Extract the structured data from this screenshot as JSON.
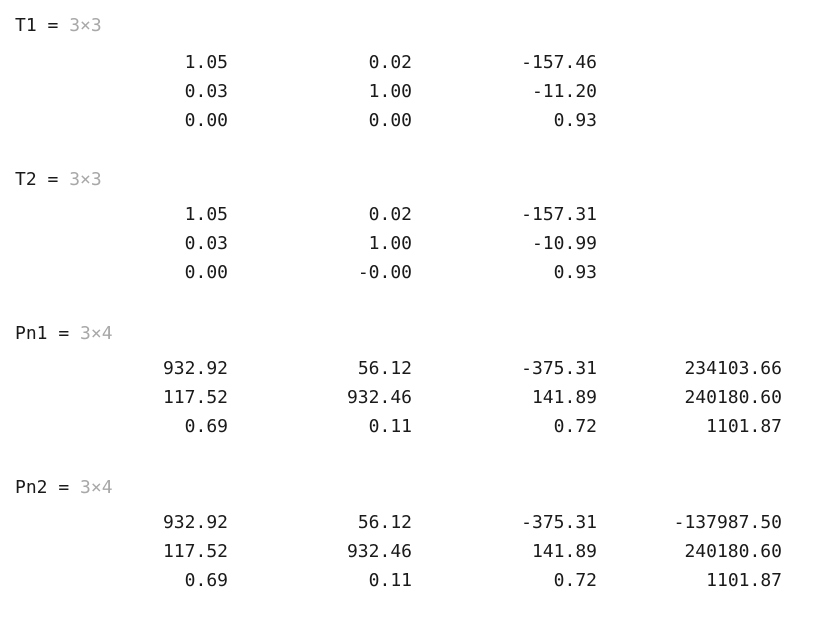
{
  "matrices": [
    {
      "name": "T1",
      "equals": "=",
      "size": "3×3",
      "rows": [
        [
          "1.05",
          "0.02",
          "-157.46"
        ],
        [
          "0.03",
          "1.00",
          "-11.20"
        ],
        [
          "0.00",
          "0.00",
          "0.93"
        ]
      ]
    },
    {
      "name": "T2",
      "equals": "=",
      "size": "3×3",
      "rows": [
        [
          "1.05",
          "0.02",
          "-157.31"
        ],
        [
          "0.03",
          "1.00",
          "-10.99"
        ],
        [
          "0.00",
          "-0.00",
          "0.93"
        ]
      ]
    },
    {
      "name": "Pn1",
      "equals": "=",
      "size": "3×4",
      "rows": [
        [
          "932.92",
          "56.12",
          "-375.31",
          "234103.66"
        ],
        [
          "117.52",
          "932.46",
          "141.89",
          "240180.60"
        ],
        [
          "0.69",
          "0.11",
          "0.72",
          "1101.87"
        ]
      ]
    },
    {
      "name": "Pn2",
      "equals": "=",
      "size": "3×4",
      "rows": [
        [
          "932.92",
          "56.12",
          "-375.31",
          "-137987.50"
        ],
        [
          "117.52",
          "932.46",
          "141.89",
          "240180.60"
        ],
        [
          "0.69",
          "0.11",
          "0.72",
          "1101.87"
        ]
      ]
    }
  ]
}
